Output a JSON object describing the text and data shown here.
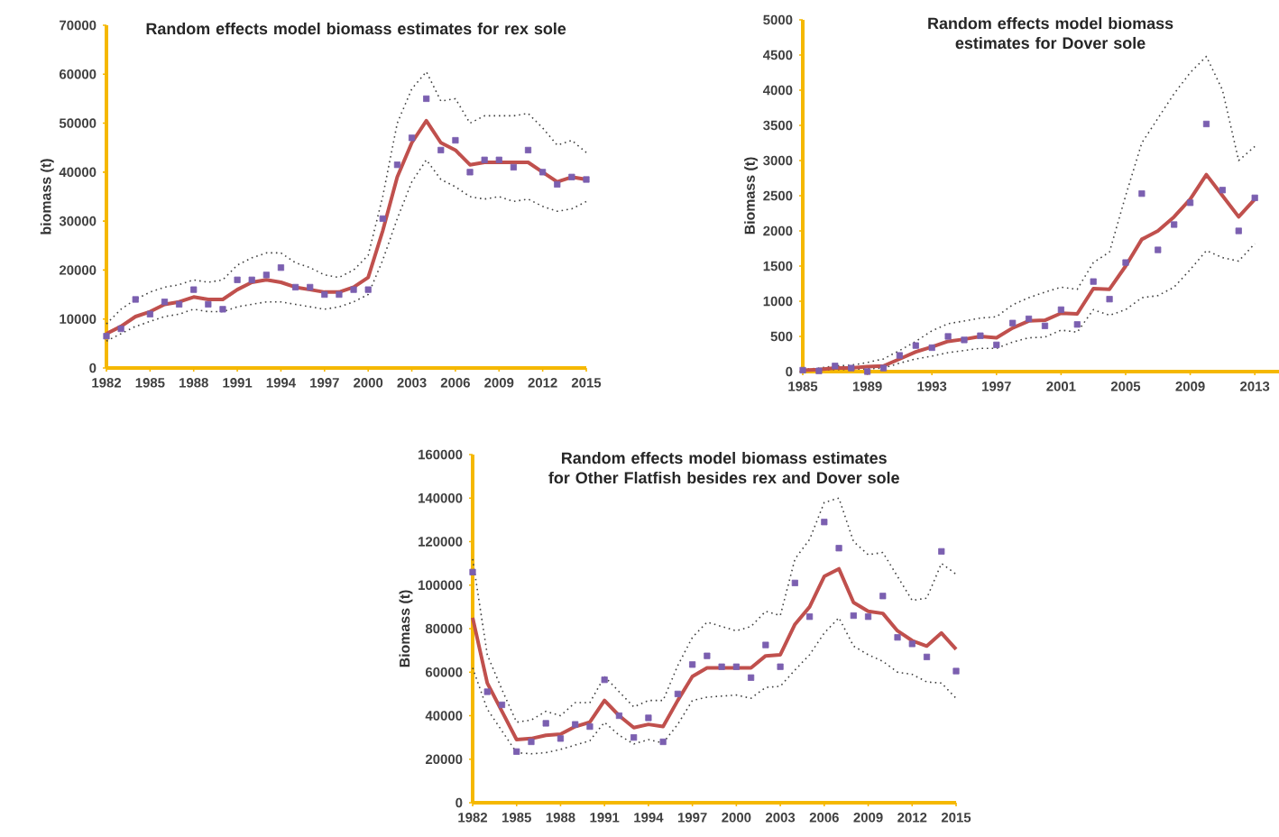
{
  "chart_data": [
    {
      "type": "line",
      "title": "Random  effects model biomass estimates for rex sole",
      "ylabel": "biomass (t)",
      "x": [
        1982,
        1983,
        1984,
        1985,
        1986,
        1987,
        1988,
        1989,
        1990,
        1991,
        1992,
        1993,
        1994,
        1995,
        1996,
        1997,
        1998,
        1999,
        2000,
        2001,
        2002,
        2003,
        2004,
        2005,
        2006,
        2007,
        2008,
        2009,
        2010,
        2011,
        2012,
        2013,
        2014,
        2015
      ],
      "xlim": [
        1982,
        2015
      ],
      "xticks": [
        1982,
        1985,
        1988,
        1991,
        1994,
        1997,
        2000,
        2003,
        2006,
        2009,
        2012,
        2015
      ],
      "ylim": [
        0,
        70000
      ],
      "yticks": [
        0,
        10000,
        20000,
        30000,
        40000,
        50000,
        60000,
        70000
      ],
      "series": [
        {
          "type": "scatter",
          "marker": "square",
          "color": "#7b5fb0",
          "values": [
            6500,
            8000,
            14000,
            11000,
            13500,
            13000,
            16000,
            13000,
            12000,
            18000,
            18000,
            19000,
            20500,
            16500,
            16500,
            15000,
            15000,
            16000,
            16000,
            30500,
            41500,
            47000,
            55000,
            44500,
            46500,
            40000,
            42500,
            42500,
            41000,
            44500,
            40000,
            37500,
            39000,
            38500
          ]
        },
        {
          "type": "line",
          "line_style": "dotted",
          "color": "#404040",
          "values": [
            9000,
            12000,
            14000,
            15500,
            16500,
            17000,
            18000,
            17500,
            18000,
            21000,
            22500,
            23500,
            23500,
            21500,
            20500,
            19000,
            18500,
            20000,
            23000,
            35000,
            50000,
            57000,
            60500,
            54500,
            55000,
            50000,
            51500,
            51500,
            51500,
            52000,
            49000,
            45500,
            46500,
            44000
          ]
        },
        {
          "type": "line",
          "line_style": "dotted",
          "color": "#404040",
          "values": [
            5500,
            7000,
            8500,
            9500,
            10500,
            11000,
            12000,
            11500,
            11500,
            12500,
            13000,
            13500,
            13500,
            13000,
            12500,
            12000,
            12500,
            13500,
            15000,
            22000,
            30500,
            38000,
            42500,
            38500,
            37000,
            35000,
            34500,
            35000,
            34000,
            34500,
            33000,
            32000,
            32500,
            34000
          ]
        },
        {
          "type": "line",
          "line_style": "solid",
          "color": "#c0504d",
          "values": [
            7000,
            8500,
            10500,
            11500,
            13000,
            13500,
            14500,
            14000,
            14000,
            16000,
            17500,
            18000,
            17500,
            16500,
            16000,
            15500,
            15500,
            16500,
            18500,
            28000,
            39000,
            46000,
            50500,
            46000,
            44500,
            41500,
            42000,
            42000,
            42000,
            42000,
            40000,
            38000,
            39000,
            38500
          ]
        }
      ]
    },
    {
      "type": "line",
      "title": "Random effects model biomass estimates for Dover sole",
      "ylabel": "Biomass (t)",
      "x": [
        1985,
        1986,
        1987,
        1988,
        1989,
        1990,
        1991,
        1992,
        1993,
        1994,
        1995,
        1996,
        1997,
        1998,
        1999,
        2000,
        2001,
        2002,
        2003,
        2004,
        2005,
        2006,
        2007,
        2008,
        2009,
        2010,
        2011,
        2012,
        2013
      ],
      "xlim": [
        1985,
        2014.5
      ],
      "xticks": [
        1985,
        1989,
        1993,
        1997,
        2001,
        2005,
        2009,
        2013
      ],
      "ylim": [
        0,
        5000
      ],
      "yticks": [
        0,
        500,
        1000,
        1500,
        2000,
        2500,
        3000,
        3500,
        4000,
        4500,
        5000
      ],
      "series": [
        {
          "type": "scatter",
          "marker": "square",
          "color": "#7b5fb0",
          "values": [
            20,
            10,
            80,
            50,
            0,
            50,
            230,
            370,
            340,
            500,
            450,
            510,
            380,
            690,
            750,
            650,
            880,
            670,
            1280,
            1030,
            1550,
            2530,
            1730,
            2090,
            2400,
            3520,
            2580,
            2000,
            2470
          ]
        },
        {
          "type": "line",
          "line_style": "dotted",
          "color": "#404040",
          "values": [
            30,
            50,
            80,
            90,
            130,
            180,
            300,
            430,
            580,
            680,
            720,
            760,
            780,
            950,
            1050,
            1130,
            1200,
            1170,
            1550,
            1700,
            2500,
            3250,
            3600,
            3950,
            4250,
            4480,
            4000,
            3000,
            3200
          ]
        },
        {
          "type": "line",
          "line_style": "dotted",
          "color": "#404040",
          "values": [
            10,
            20,
            30,
            30,
            40,
            50,
            120,
            180,
            220,
            270,
            300,
            330,
            330,
            420,
            480,
            490,
            590,
            560,
            880,
            800,
            880,
            1050,
            1080,
            1200,
            1450,
            1720,
            1620,
            1570,
            1820
          ]
        },
        {
          "type": "line",
          "line_style": "solid",
          "color": "#c0504d",
          "values": [
            20,
            30,
            50,
            50,
            70,
            80,
            180,
            280,
            350,
            430,
            460,
            500,
            480,
            620,
            720,
            730,
            830,
            820,
            1180,
            1170,
            1500,
            1880,
            2000,
            2200,
            2450,
            2800,
            2500,
            2200,
            2450
          ]
        }
      ]
    },
    {
      "type": "line",
      "title": "Random effects model biomass estimates for Other Flatfish besides rex and Dover sole",
      "ylabel": "Biomass (t)",
      "x": [
        1982,
        1983,
        1984,
        1985,
        1986,
        1987,
        1988,
        1989,
        1990,
        1991,
        1992,
        1993,
        1994,
        1995,
        1996,
        1997,
        1998,
        1999,
        2000,
        2001,
        2002,
        2003,
        2004,
        2005,
        2006,
        2007,
        2008,
        2009,
        2010,
        2011,
        2012,
        2013,
        2014,
        2015
      ],
      "xlim": [
        1982,
        2015
      ],
      "xticks": [
        1982,
        1985,
        1988,
        1991,
        1994,
        1997,
        2000,
        2003,
        2006,
        2009,
        2012,
        2015
      ],
      "ylim": [
        0,
        160000
      ],
      "yticks": [
        0,
        20000,
        40000,
        60000,
        80000,
        100000,
        120000,
        140000,
        160000
      ],
      "series": [
        {
          "type": "scatter",
          "marker": "square",
          "color": "#7b5fb0",
          "values": [
            106000,
            51000,
            45000,
            23500,
            28000,
            36500,
            29500,
            36000,
            35000,
            56500,
            40000,
            30000,
            39000,
            28000,
            50000,
            63500,
            67500,
            62500,
            62500,
            57500,
            72500,
            62500,
            101000,
            85500,
            129000,
            117000,
            86000,
            85500,
            95000,
            76000,
            73000,
            67000,
            115500,
            60500
          ]
        },
        {
          "type": "line",
          "line_style": "dotted",
          "color": "#404040",
          "values": [
            112000,
            68000,
            52000,
            37000,
            38000,
            42000,
            40000,
            46000,
            46000,
            58000,
            51000,
            44000,
            47000,
            47000,
            63000,
            76000,
            83000,
            81000,
            79000,
            81000,
            88000,
            86000,
            112000,
            121000,
            138000,
            140000,
            120000,
            114000,
            115000,
            104000,
            93000,
            94000,
            110000,
            105000
          ]
        },
        {
          "type": "line",
          "line_style": "dotted",
          "color": "#404040",
          "values": [
            62000,
            43000,
            33000,
            23000,
            22500,
            23000,
            24500,
            26500,
            28500,
            37000,
            31000,
            27000,
            29000,
            27500,
            36000,
            47000,
            48500,
            49000,
            49500,
            48000,
            53000,
            53500,
            61000,
            68000,
            78000,
            85000,
            72000,
            68000,
            65000,
            60000,
            59000,
            55500,
            55000,
            48000
          ]
        },
        {
          "type": "line",
          "line_style": "solid",
          "color": "#c0504d",
          "values": [
            85000,
            55000,
            42000,
            29000,
            29500,
            31000,
            31500,
            35000,
            37000,
            47000,
            40000,
            34500,
            36000,
            35000,
            47000,
            58000,
            62000,
            62000,
            62000,
            62000,
            67500,
            68000,
            82000,
            90000,
            104000,
            107500,
            92000,
            88000,
            87000,
            79000,
            74500,
            72000,
            78000,
            70500
          ]
        }
      ]
    }
  ]
}
